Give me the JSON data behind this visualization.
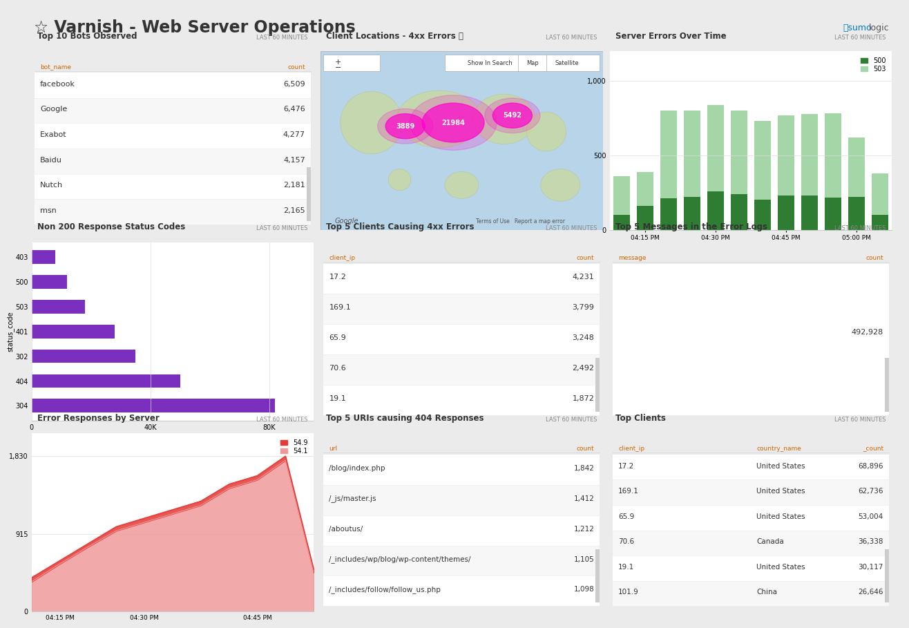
{
  "title": "Varnish - Web Server Operations",
  "bg_color": "#ebebeb",
  "panel_bg": "#ffffff",
  "bots": {
    "title": "Top 10 Bots Observed",
    "col1": "bot_name",
    "col2": "count",
    "rows": [
      [
        "facebook",
        "6,509"
      ],
      [
        "Google",
        "6,476"
      ],
      [
        "Exabot",
        "4,277"
      ],
      [
        "Baidu",
        "4,157"
      ],
      [
        "Nutch",
        "2,181"
      ],
      [
        "msn",
        "2,165"
      ]
    ]
  },
  "server_errors": {
    "title": "Server Errors Over Time",
    "vals_500": [
      100,
      160,
      210,
      220,
      260,
      240,
      200,
      230,
      230,
      215,
      220,
      100
    ],
    "vals_503": [
      260,
      230,
      590,
      580,
      580,
      560,
      530,
      540,
      550,
      570,
      400,
      280
    ],
    "color_500": "#2e7d32",
    "color_503": "#a5d6a7",
    "xtick_pos": [
      1,
      4,
      7,
      10
    ],
    "xtick_labels": [
      "04:15 PM",
      "04:30 PM",
      "04:45 PM",
      "05:00 PM"
    ],
    "yticks": [
      0,
      500,
      1000
    ],
    "ytick_labels": [
      "0",
      "500",
      "1,000"
    ]
  },
  "status_codes": {
    "title": "Non 200 Response Status Codes",
    "codes": [
      "304",
      "404",
      "302",
      "401",
      "503",
      "500",
      "403"
    ],
    "values": [
      82000,
      50000,
      35000,
      28000,
      18000,
      12000,
      8000
    ],
    "color": "#7b2fbe"
  },
  "clients_4xx": {
    "title": "Top 5 Clients Causing 4xx Errors",
    "col1": "client_ip",
    "col2": "count",
    "rows": [
      [
        "17.2",
        "4,231"
      ],
      [
        "169.1",
        "3,799"
      ],
      [
        "65.9",
        "3,248"
      ],
      [
        "70.6",
        "2,492"
      ],
      [
        "19.1",
        "1,872"
      ]
    ]
  },
  "error_logs": {
    "title": "Top 5 Messages in the Error Logs",
    "col1": "message",
    "col2": "count",
    "rows": [
      [
        "",
        "492,928"
      ]
    ]
  },
  "error_responses": {
    "title": "Error Responses by Server",
    "vals_549": [
      400,
      600,
      800,
      1000,
      1100,
      1200,
      1300,
      1500,
      1600,
      1830,
      500
    ],
    "vals_541": [
      350,
      560,
      760,
      950,
      1050,
      1150,
      1250,
      1450,
      1550,
      1780,
      460
    ],
    "color_549": "#e53935",
    "color_541": "#ef9a9a",
    "xtick_pos": [
      1,
      4,
      8
    ],
    "xtick_labels": [
      "04:15 PM",
      "04:30 PM",
      "04:45 PM"
    ],
    "yticks": [
      0,
      915,
      1830
    ],
    "ytick_labels": [
      "0",
      "915",
      "1,830"
    ],
    "label_549": "54.9",
    "label_541": "54.1"
  },
  "uris_404": {
    "title": "Top 5 URIs causing 404 Responses",
    "col1": "url",
    "col2": "count",
    "rows": [
      [
        "/blog/index.php",
        "1,842"
      ],
      [
        "/_js/master.js",
        "1,412"
      ],
      [
        "/aboutus/",
        "1,212"
      ],
      [
        "/_includes/wp/blog/wp-content/themes/",
        "1,105"
      ],
      [
        "/_includes/follow/follow_us.php",
        "1,098"
      ]
    ]
  },
  "top_clients": {
    "title": "Top Clients",
    "col1": "client_ip",
    "col2": "country_name",
    "col3": "_count",
    "rows": [
      [
        "17.2",
        "United States",
        "68,896"
      ],
      [
        "169.1",
        "United States",
        "62,736"
      ],
      [
        "65.9",
        "United States",
        "53,004"
      ],
      [
        "70.6",
        "Canada",
        "36,338"
      ],
      [
        "19.1",
        "United States",
        "30,117"
      ],
      [
        "101.9",
        "China",
        "26,646"
      ]
    ]
  }
}
